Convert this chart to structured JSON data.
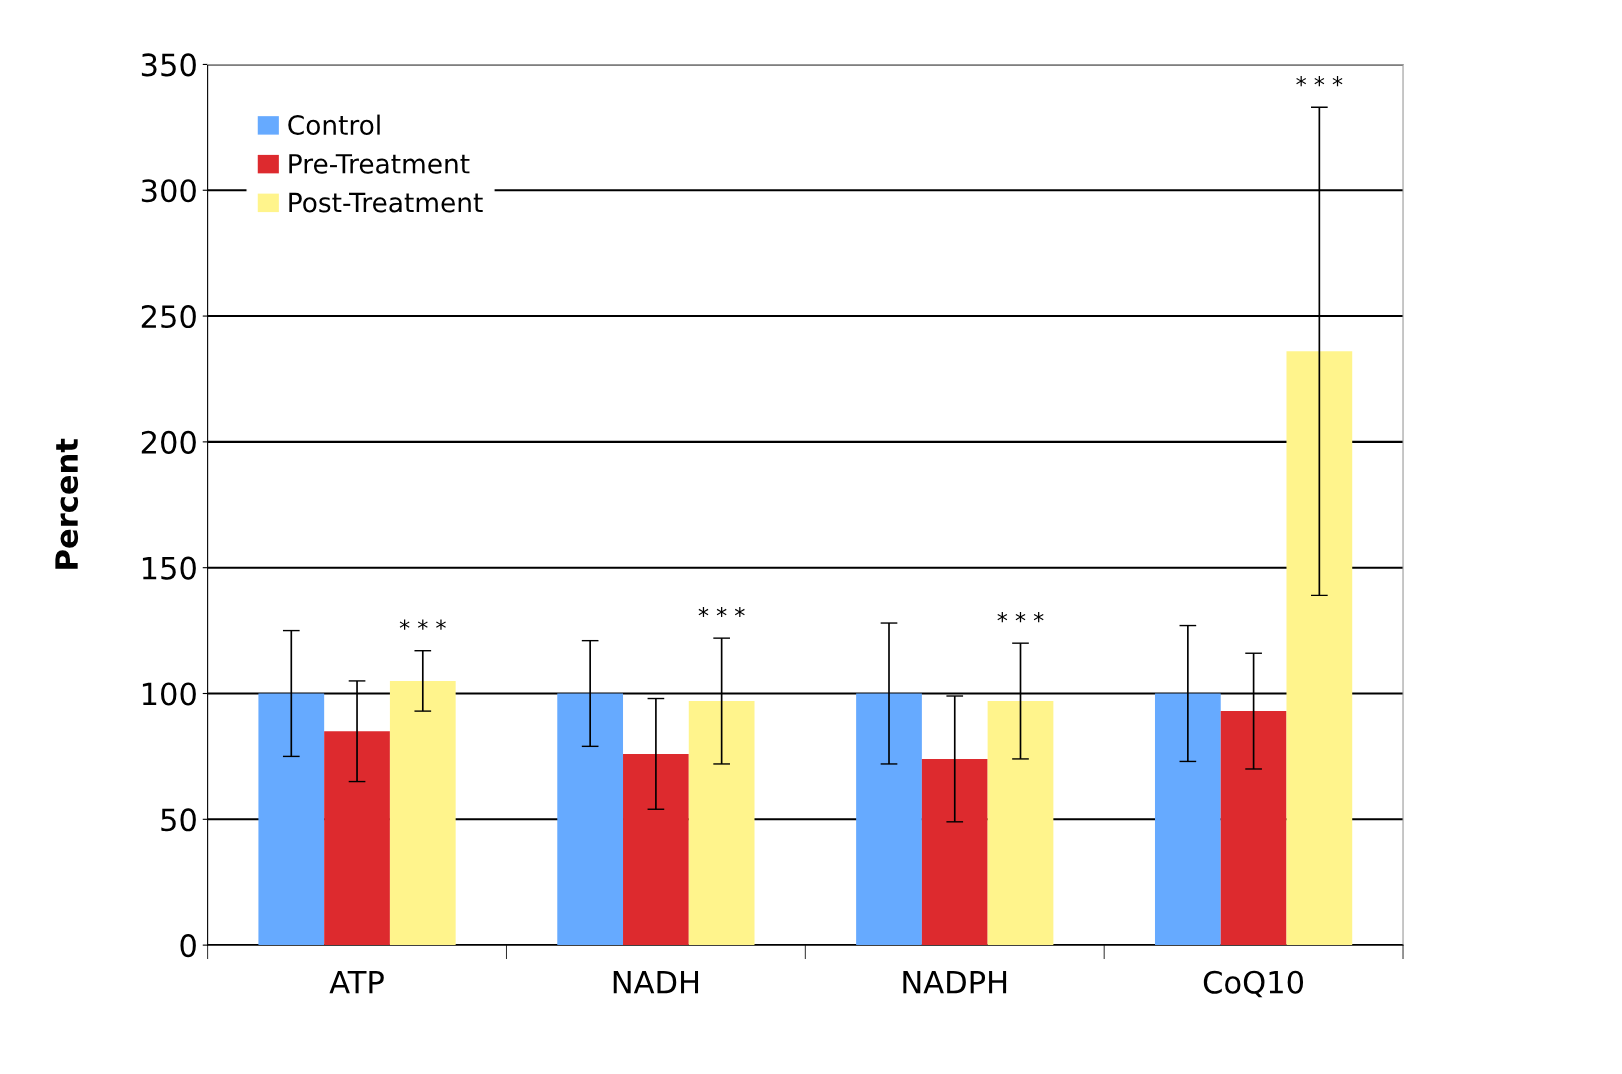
{
  "chart_data": {
    "type": "bar",
    "ylabel": "Percent",
    "categories": [
      "ATP",
      "NADH",
      "NADPH",
      "CoQ10"
    ],
    "series": [
      {
        "name": "Control",
        "color": "#66aaff",
        "values": [
          100,
          100,
          100,
          100
        ],
        "errors": [
          25,
          21,
          28,
          27
        ]
      },
      {
        "name": "Pre-Treatment",
        "color": "#dd2a2e",
        "values": [
          85,
          76,
          74,
          93
        ],
        "errors": [
          20,
          22,
          25,
          23
        ]
      },
      {
        "name": "Post-Treatment",
        "color": "#fff48c",
        "values": [
          105,
          97,
          97,
          236
        ],
        "errors": [
          12,
          25,
          23,
          97
        ]
      }
    ],
    "ylim": [
      0,
      350
    ],
    "yticks": [
      0,
      50,
      100,
      150,
      200,
      250,
      300,
      350
    ],
    "grid": "y",
    "legend": "top left",
    "annotations": [
      "* * *",
      "* * *",
      "* * *",
      "* * *"
    ]
  }
}
